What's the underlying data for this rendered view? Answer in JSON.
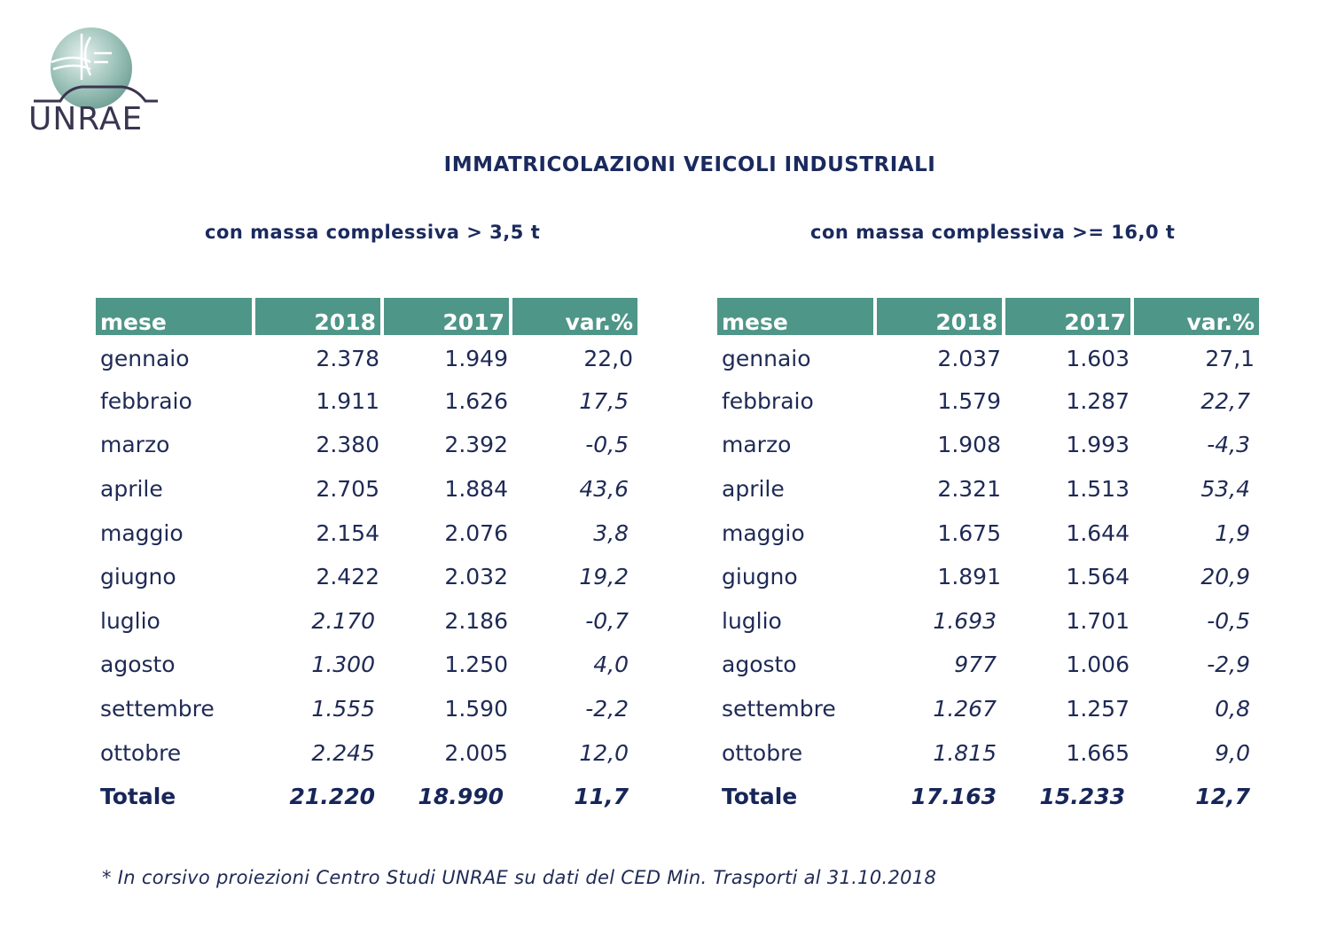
{
  "logo": {
    "text": "UNRAE"
  },
  "title": "IMMATRICOLAZIONI VEICOLI INDUSTRIALI",
  "left": {
    "subtitle": "con massa complessiva > 3,5 t",
    "headers": [
      "mese",
      "2018",
      "2017",
      "var.%"
    ],
    "rows": [
      [
        "gennaio",
        "2.378",
        "1.949",
        "22,0"
      ],
      [
        "febbraio",
        "1.911",
        "1.626",
        "17,5"
      ],
      [
        "marzo",
        "2.380",
        "2.392",
        "-0,5"
      ],
      [
        "aprile",
        "2.705",
        "1.884",
        "43,6"
      ],
      [
        "maggio",
        "2.154",
        "2.076",
        "3,8"
      ],
      [
        "giugno",
        "2.422",
        "2.032",
        "19,2"
      ],
      [
        "luglio",
        "2.170",
        "2.186",
        "-0,7"
      ],
      [
        "agosto",
        "1.300",
        "1.250",
        "4,0"
      ],
      [
        "settembre",
        "1.555",
        "1.590",
        "-2,2"
      ],
      [
        "ottobre",
        "2.245",
        "2.005",
        "12,0"
      ]
    ],
    "total": [
      "Totale",
      "21.220",
      "18.990",
      "11,7"
    ]
  },
  "right": {
    "subtitle": "con massa complessiva >= 16,0 t",
    "headers": [
      "mese",
      "2018",
      "2017",
      "var.%"
    ],
    "rows": [
      [
        "gennaio",
        "2.037",
        "1.603",
        "27,1"
      ],
      [
        "febbraio",
        "1.579",
        "1.287",
        "22,7"
      ],
      [
        "marzo",
        "1.908",
        "1.993",
        "-4,3"
      ],
      [
        "aprile",
        "2.321",
        "1.513",
        "53,4"
      ],
      [
        "maggio",
        "1.675",
        "1.644",
        "1,9"
      ],
      [
        "giugno",
        "1.891",
        "1.564",
        "20,9"
      ],
      [
        "luglio",
        "1.693",
        "1.701",
        "-0,5"
      ],
      [
        "agosto",
        "977",
        "1.006",
        "-2,9"
      ],
      [
        "settembre",
        "1.267",
        "1.257",
        "0,8"
      ],
      [
        "ottobre",
        "1.815",
        "1.665",
        "9,0"
      ]
    ],
    "total": [
      "Totale",
      "17.163",
      "15.233",
      "12,7"
    ]
  },
  "footnote": "* In corsivo proiezioni Centro Studi UNRAE su dati del CED Min. Trasporti al 31.10.2018",
  "colors": {
    "header_bg": "#4e9688",
    "text": "#1f2a55",
    "logo_circle": "#8fb8ae",
    "logo_text": "#3a3550"
  }
}
